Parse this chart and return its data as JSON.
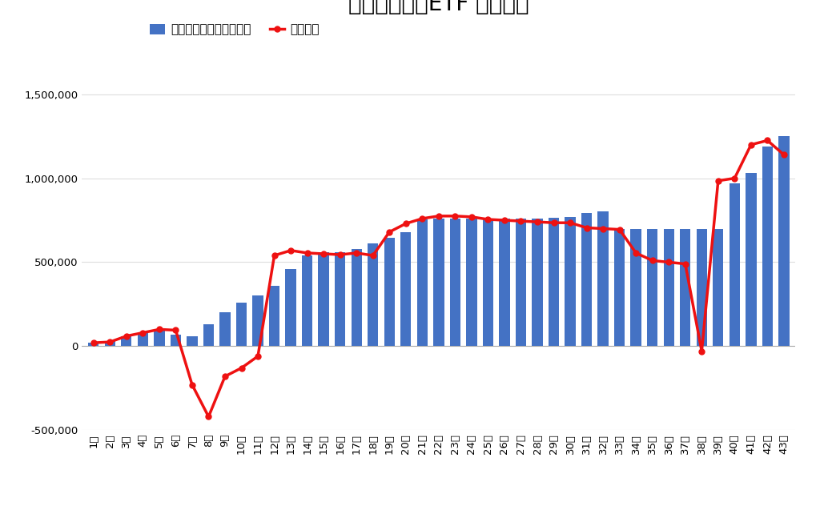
{
  "title": "トライオートETF 週間収支",
  "legend_bar": "確定利益（累積利確額）",
  "legend_line": "実現損益",
  "weeks": [
    "1週",
    "2週",
    "3週",
    "4週",
    "5週",
    "6週",
    "7週",
    "8週",
    "9週",
    "10週",
    "11週",
    "12週",
    "13週",
    "14週",
    "15週",
    "16週",
    "17週",
    "18週",
    "19週",
    "20週",
    "21週",
    "22週",
    "23週",
    "24週",
    "25週",
    "26週",
    "27週",
    "28週",
    "29週",
    "30週",
    "31週",
    "32週",
    "33週",
    "34週",
    "35週",
    "36週",
    "37週",
    "38週",
    "39週",
    "40週",
    "41週",
    "42週",
    "43週"
  ],
  "bar_values": [
    20000,
    30000,
    60000,
    80000,
    90000,
    70000,
    60000,
    130000,
    200000,
    260000,
    300000,
    360000,
    460000,
    540000,
    560000,
    560000,
    580000,
    610000,
    645000,
    680000,
    755000,
    760000,
    760000,
    760000,
    760000,
    760000,
    760000,
    760000,
    765000,
    770000,
    795000,
    805000,
    700000,
    700000,
    700000,
    700000,
    700000,
    700000,
    700000,
    970000,
    1030000,
    1190000,
    1250000
  ],
  "line_values": [
    20000,
    25000,
    60000,
    80000,
    100000,
    95000,
    -230000,
    -420000,
    -180000,
    -130000,
    -60000,
    540000,
    570000,
    555000,
    550000,
    545000,
    555000,
    540000,
    680000,
    730000,
    760000,
    775000,
    775000,
    770000,
    755000,
    750000,
    745000,
    740000,
    735000,
    735000,
    705000,
    700000,
    695000,
    555000,
    510000,
    500000,
    490000,
    -30000,
    985000,
    1000000,
    1200000,
    1225000,
    1140000
  ],
  "bar_color": "#4472C4",
  "line_color": "#EE1111",
  "background_color": "#FFFFFF",
  "ylim_min": -500000,
  "ylim_max": 1700000,
  "yticks": [
    -500000,
    0,
    500000,
    1000000,
    1500000
  ],
  "title_fontsize": 20,
  "legend_fontsize": 11,
  "tick_fontsize": 9.5,
  "grid_color": "#DDDDDD"
}
